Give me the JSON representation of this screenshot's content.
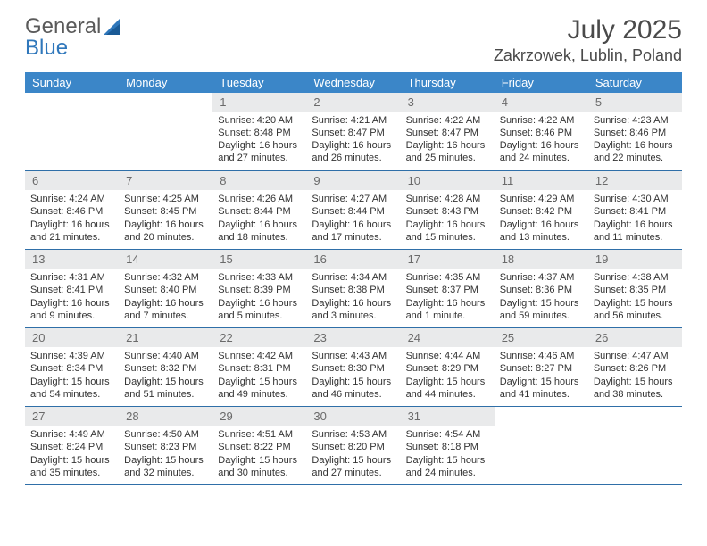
{
  "brand": {
    "part1": "General",
    "part2": "Blue"
  },
  "title": "July 2025",
  "location": "Zakrzowek, Lublin, Poland",
  "colors": {
    "header_bg": "#3b86c8",
    "header_text": "#ffffff",
    "daynum_bg": "#e9eaeb",
    "daynum_text": "#6a6a6a",
    "border": "#2f6fa8",
    "brand_blue": "#2f77bb",
    "text": "#333333"
  },
  "day_names": [
    "Sunday",
    "Monday",
    "Tuesday",
    "Wednesday",
    "Thursday",
    "Friday",
    "Saturday"
  ],
  "weeks": [
    [
      {
        "n": "",
        "sr": "",
        "ss": "",
        "dl": ""
      },
      {
        "n": "",
        "sr": "",
        "ss": "",
        "dl": ""
      },
      {
        "n": "1",
        "sr": "Sunrise: 4:20 AM",
        "ss": "Sunset: 8:48 PM",
        "dl": "Daylight: 16 hours and 27 minutes."
      },
      {
        "n": "2",
        "sr": "Sunrise: 4:21 AM",
        "ss": "Sunset: 8:47 PM",
        "dl": "Daylight: 16 hours and 26 minutes."
      },
      {
        "n": "3",
        "sr": "Sunrise: 4:22 AM",
        "ss": "Sunset: 8:47 PM",
        "dl": "Daylight: 16 hours and 25 minutes."
      },
      {
        "n": "4",
        "sr": "Sunrise: 4:22 AM",
        "ss": "Sunset: 8:46 PM",
        "dl": "Daylight: 16 hours and 24 minutes."
      },
      {
        "n": "5",
        "sr": "Sunrise: 4:23 AM",
        "ss": "Sunset: 8:46 PM",
        "dl": "Daylight: 16 hours and 22 minutes."
      }
    ],
    [
      {
        "n": "6",
        "sr": "Sunrise: 4:24 AM",
        "ss": "Sunset: 8:46 PM",
        "dl": "Daylight: 16 hours and 21 minutes."
      },
      {
        "n": "7",
        "sr": "Sunrise: 4:25 AM",
        "ss": "Sunset: 8:45 PM",
        "dl": "Daylight: 16 hours and 20 minutes."
      },
      {
        "n": "8",
        "sr": "Sunrise: 4:26 AM",
        "ss": "Sunset: 8:44 PM",
        "dl": "Daylight: 16 hours and 18 minutes."
      },
      {
        "n": "9",
        "sr": "Sunrise: 4:27 AM",
        "ss": "Sunset: 8:44 PM",
        "dl": "Daylight: 16 hours and 17 minutes."
      },
      {
        "n": "10",
        "sr": "Sunrise: 4:28 AM",
        "ss": "Sunset: 8:43 PM",
        "dl": "Daylight: 16 hours and 15 minutes."
      },
      {
        "n": "11",
        "sr": "Sunrise: 4:29 AM",
        "ss": "Sunset: 8:42 PM",
        "dl": "Daylight: 16 hours and 13 minutes."
      },
      {
        "n": "12",
        "sr": "Sunrise: 4:30 AM",
        "ss": "Sunset: 8:41 PM",
        "dl": "Daylight: 16 hours and 11 minutes."
      }
    ],
    [
      {
        "n": "13",
        "sr": "Sunrise: 4:31 AM",
        "ss": "Sunset: 8:41 PM",
        "dl": "Daylight: 16 hours and 9 minutes."
      },
      {
        "n": "14",
        "sr": "Sunrise: 4:32 AM",
        "ss": "Sunset: 8:40 PM",
        "dl": "Daylight: 16 hours and 7 minutes."
      },
      {
        "n": "15",
        "sr": "Sunrise: 4:33 AM",
        "ss": "Sunset: 8:39 PM",
        "dl": "Daylight: 16 hours and 5 minutes."
      },
      {
        "n": "16",
        "sr": "Sunrise: 4:34 AM",
        "ss": "Sunset: 8:38 PM",
        "dl": "Daylight: 16 hours and 3 minutes."
      },
      {
        "n": "17",
        "sr": "Sunrise: 4:35 AM",
        "ss": "Sunset: 8:37 PM",
        "dl": "Daylight: 16 hours and 1 minute."
      },
      {
        "n": "18",
        "sr": "Sunrise: 4:37 AM",
        "ss": "Sunset: 8:36 PM",
        "dl": "Daylight: 15 hours and 59 minutes."
      },
      {
        "n": "19",
        "sr": "Sunrise: 4:38 AM",
        "ss": "Sunset: 8:35 PM",
        "dl": "Daylight: 15 hours and 56 minutes."
      }
    ],
    [
      {
        "n": "20",
        "sr": "Sunrise: 4:39 AM",
        "ss": "Sunset: 8:34 PM",
        "dl": "Daylight: 15 hours and 54 minutes."
      },
      {
        "n": "21",
        "sr": "Sunrise: 4:40 AM",
        "ss": "Sunset: 8:32 PM",
        "dl": "Daylight: 15 hours and 51 minutes."
      },
      {
        "n": "22",
        "sr": "Sunrise: 4:42 AM",
        "ss": "Sunset: 8:31 PM",
        "dl": "Daylight: 15 hours and 49 minutes."
      },
      {
        "n": "23",
        "sr": "Sunrise: 4:43 AM",
        "ss": "Sunset: 8:30 PM",
        "dl": "Daylight: 15 hours and 46 minutes."
      },
      {
        "n": "24",
        "sr": "Sunrise: 4:44 AM",
        "ss": "Sunset: 8:29 PM",
        "dl": "Daylight: 15 hours and 44 minutes."
      },
      {
        "n": "25",
        "sr": "Sunrise: 4:46 AM",
        "ss": "Sunset: 8:27 PM",
        "dl": "Daylight: 15 hours and 41 minutes."
      },
      {
        "n": "26",
        "sr": "Sunrise: 4:47 AM",
        "ss": "Sunset: 8:26 PM",
        "dl": "Daylight: 15 hours and 38 minutes."
      }
    ],
    [
      {
        "n": "27",
        "sr": "Sunrise: 4:49 AM",
        "ss": "Sunset: 8:24 PM",
        "dl": "Daylight: 15 hours and 35 minutes."
      },
      {
        "n": "28",
        "sr": "Sunrise: 4:50 AM",
        "ss": "Sunset: 8:23 PM",
        "dl": "Daylight: 15 hours and 32 minutes."
      },
      {
        "n": "29",
        "sr": "Sunrise: 4:51 AM",
        "ss": "Sunset: 8:22 PM",
        "dl": "Daylight: 15 hours and 30 minutes."
      },
      {
        "n": "30",
        "sr": "Sunrise: 4:53 AM",
        "ss": "Sunset: 8:20 PM",
        "dl": "Daylight: 15 hours and 27 minutes."
      },
      {
        "n": "31",
        "sr": "Sunrise: 4:54 AM",
        "ss": "Sunset: 8:18 PM",
        "dl": "Daylight: 15 hours and 24 minutes."
      },
      {
        "n": "",
        "sr": "",
        "ss": "",
        "dl": ""
      },
      {
        "n": "",
        "sr": "",
        "ss": "",
        "dl": ""
      }
    ]
  ]
}
